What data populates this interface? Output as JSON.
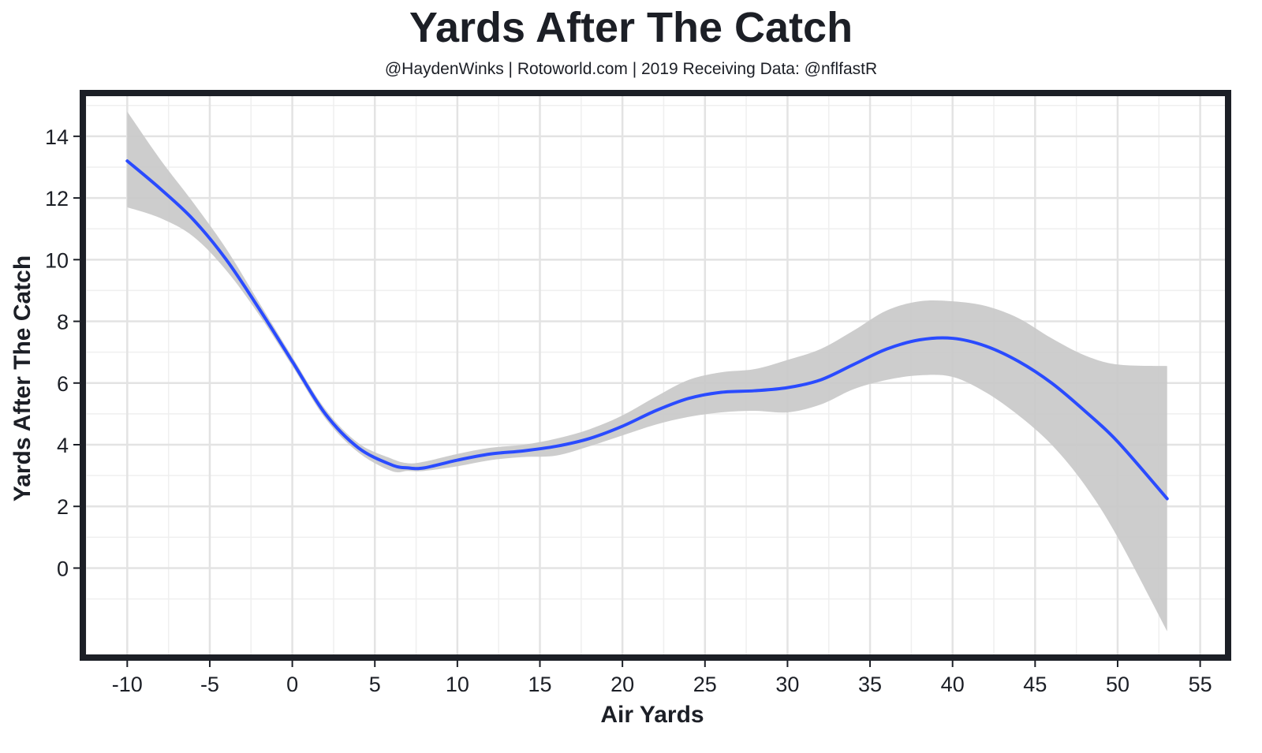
{
  "colors": {
    "line": "#2a4bff",
    "band": "#c8c8c8",
    "frame": "#1c1f26",
    "grid_major": "#e3e3e3",
    "grid_minor": "#efefef",
    "text": "#1c1f26"
  },
  "chart_data": {
    "type": "line",
    "title": "Yards After The Catch",
    "subtitle": "@HaydenWinks | Rotoworld.com | 2019 Receiving Data: @nflfastR",
    "xlabel": "Air Yards",
    "ylabel": "Yards After The Catch",
    "xlim": [
      -12.5,
      56.5
    ],
    "ylim": [
      -2.8,
      15.3
    ],
    "x_ticks": [
      -10,
      -5,
      0,
      5,
      10,
      15,
      20,
      25,
      30,
      35,
      40,
      45,
      50,
      55
    ],
    "x_tick_labels": [
      "-10",
      "-5",
      "0",
      "5",
      "10",
      "15",
      "20",
      "25",
      "30",
      "35",
      "40",
      "45",
      "50",
      "55"
    ],
    "y_ticks": [
      0,
      2,
      4,
      6,
      8,
      10,
      12,
      14
    ],
    "y_tick_labels": [
      "0",
      "2",
      "4",
      "6",
      "8",
      "10",
      "12",
      "14"
    ],
    "grid": true,
    "legend": "none",
    "series": [
      {
        "x": [
          -10,
          -8,
          -6,
          -4,
          -2,
          0,
          2,
          4,
          6,
          7,
          8,
          10,
          12,
          14,
          16,
          18,
          20,
          22,
          24,
          26,
          28,
          30,
          32,
          34,
          36,
          38,
          40,
          42,
          44,
          46,
          48,
          50,
          53
        ],
        "y": [
          13.2,
          12.3,
          11.3,
          10.0,
          8.4,
          6.7,
          5.0,
          3.9,
          3.35,
          3.25,
          3.25,
          3.5,
          3.7,
          3.8,
          3.95,
          4.2,
          4.6,
          5.1,
          5.5,
          5.7,
          5.75,
          5.85,
          6.1,
          6.6,
          7.1,
          7.4,
          7.45,
          7.2,
          6.7,
          6.0,
          5.1,
          4.1,
          2.25
        ],
        "lower": [
          11.7,
          11.35,
          10.75,
          9.65,
          8.2,
          6.55,
          4.85,
          3.75,
          3.15,
          3.15,
          3.15,
          3.3,
          3.5,
          3.6,
          3.65,
          3.95,
          4.3,
          4.65,
          4.9,
          5.05,
          5.1,
          5.05,
          5.3,
          5.8,
          6.1,
          6.25,
          6.2,
          5.7,
          4.95,
          4.0,
          2.7,
          1.0,
          -2.05
        ],
        "upper": [
          14.8,
          13.25,
          11.85,
          10.35,
          8.6,
          6.85,
          5.15,
          4.05,
          3.55,
          3.4,
          3.45,
          3.7,
          3.9,
          4.0,
          4.2,
          4.5,
          4.95,
          5.55,
          6.1,
          6.35,
          6.45,
          6.75,
          7.1,
          7.7,
          8.35,
          8.65,
          8.65,
          8.5,
          8.1,
          7.45,
          6.9,
          6.6,
          6.55
        ]
      }
    ]
  }
}
